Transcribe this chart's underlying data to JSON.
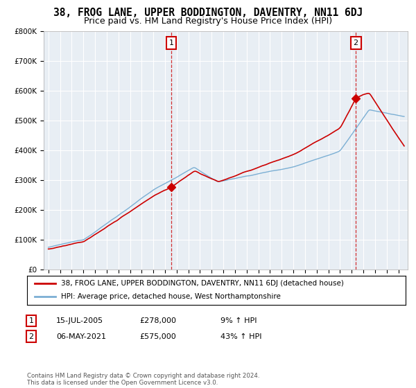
{
  "title": "38, FROG LANE, UPPER BODDINGTON, DAVENTRY, NN11 6DJ",
  "subtitle": "Price paid vs. HM Land Registry's House Price Index (HPI)",
  "ylabel_ticks": [
    "£0",
    "£100K",
    "£200K",
    "£300K",
    "£400K",
    "£500K",
    "£600K",
    "£700K",
    "£800K"
  ],
  "ylim": [
    0,
    800000
  ],
  "xlim_start": 1994.6,
  "xlim_end": 2025.8,
  "sale1_x": 2005.54,
  "sale1_y": 278000,
  "sale2_x": 2021.35,
  "sale2_y": 575000,
  "legend_line1": "38, FROG LANE, UPPER BODDINGTON, DAVENTRY, NN11 6DJ (detached house)",
  "legend_line2": "HPI: Average price, detached house, West Northamptonshire",
  "ann1_date": "15-JUL-2005",
  "ann1_price": "£278,000",
  "ann1_pct": "9% ↑ HPI",
  "ann2_date": "06-MAY-2021",
  "ann2_price": "£575,000",
  "ann2_pct": "43% ↑ HPI",
  "footer": "Contains HM Land Registry data © Crown copyright and database right 2024.\nThis data is licensed under the Open Government Licence v3.0.",
  "red_color": "#cc0000",
  "blue_color": "#7bafd4",
  "bg_plot_color": "#e8eef4",
  "background_color": "#ffffff",
  "grid_color": "#ffffff",
  "title_fontsize": 10.5,
  "subtitle_fontsize": 9
}
